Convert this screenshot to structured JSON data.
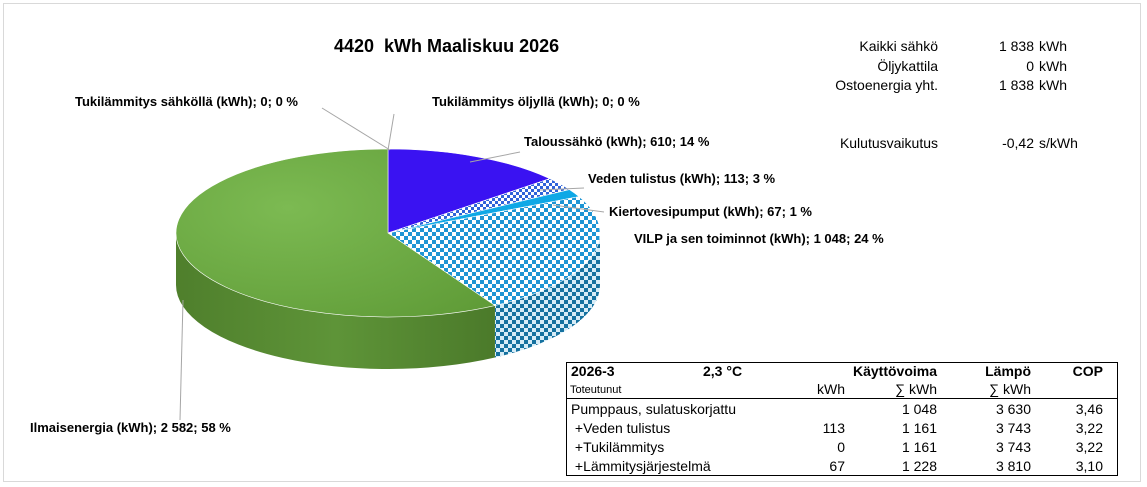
{
  "chart_data": {
    "type": "pie",
    "title": "4420  kWh Maaliskuu 2026",
    "slices": [
      {
        "label": "Tukilämmitys sähköllä (kWh); 0; 0 %",
        "value": 0,
        "color": "#4f81bd",
        "pattern": "solid"
      },
      {
        "label": "Tukilämmitys öljyllä (kWh); 0; 0 %",
        "value": 0,
        "color": "#c0504d",
        "pattern": "solid"
      },
      {
        "label": "Taloussähkö (kWh); 610; 14 %",
        "value": 610,
        "color": "#3a12f2",
        "pattern": "solid"
      },
      {
        "label": "Veden tulistus (kWh); 113; 3 %",
        "value": 113,
        "color": "#2f63d9",
        "pattern": "checker"
      },
      {
        "label": "Kiertovesipumput (kWh); 67; 1 %",
        "value": 67,
        "color": "#0fa8e6",
        "pattern": "solid"
      },
      {
        "label": "VILP ja sen toiminnot (kWh); 1 048; 24 %",
        "value": 1048,
        "color": "#1e95d4",
        "pattern": "checker"
      },
      {
        "label": "Ilmaisenergia (kWh); 2 582; 58 %",
        "value": 2582,
        "color": "#70ad47",
        "pattern": "solid"
      }
    ]
  },
  "summary": {
    "rows": [
      {
        "label": "Kaikki sähkö",
        "value": "1 838",
        "unit": "kWh"
      },
      {
        "label": "Öljykattila",
        "value": "0",
        "unit": "kWh"
      },
      {
        "label": "Ostoenergia yht.",
        "value": "1 838",
        "unit": "kWh"
      },
      {
        "label": "Kulutusvaikutus",
        "value": "-0,42",
        "unit": "s/kWh"
      }
    ]
  },
  "table": {
    "period": "2026-3",
    "temperature": "2,3  °C",
    "col_power": "Käyttövoima",
    "col_heat": "Lämpö",
    "col_cop": "COP",
    "sub_label": "Toteutunut",
    "sub_kwh": "kWh",
    "sub_sum_kwh": "∑ kWh",
    "sub_heat_kwh": "∑ kWh",
    "rows": [
      {
        "label": "Pumppaus, sulatuskorjattu",
        "kwh": "",
        "sum_kwh": "1 048",
        "heat": "3 630",
        "cop": "3,46"
      },
      {
        "label": " +Veden tulistus",
        "kwh": "113",
        "sum_kwh": "1 161",
        "heat": "3 743",
        "cop": "3,22"
      },
      {
        "label": " +Tukilämmitys",
        "kwh": "0",
        "sum_kwh": "1 161",
        "heat": "3 743",
        "cop": "3,22"
      },
      {
        "label": " +Lämmitysjärjestelmä",
        "kwh": "67",
        "sum_kwh": "1 228",
        "heat": "3 810",
        "cop": "3,10"
      }
    ]
  }
}
